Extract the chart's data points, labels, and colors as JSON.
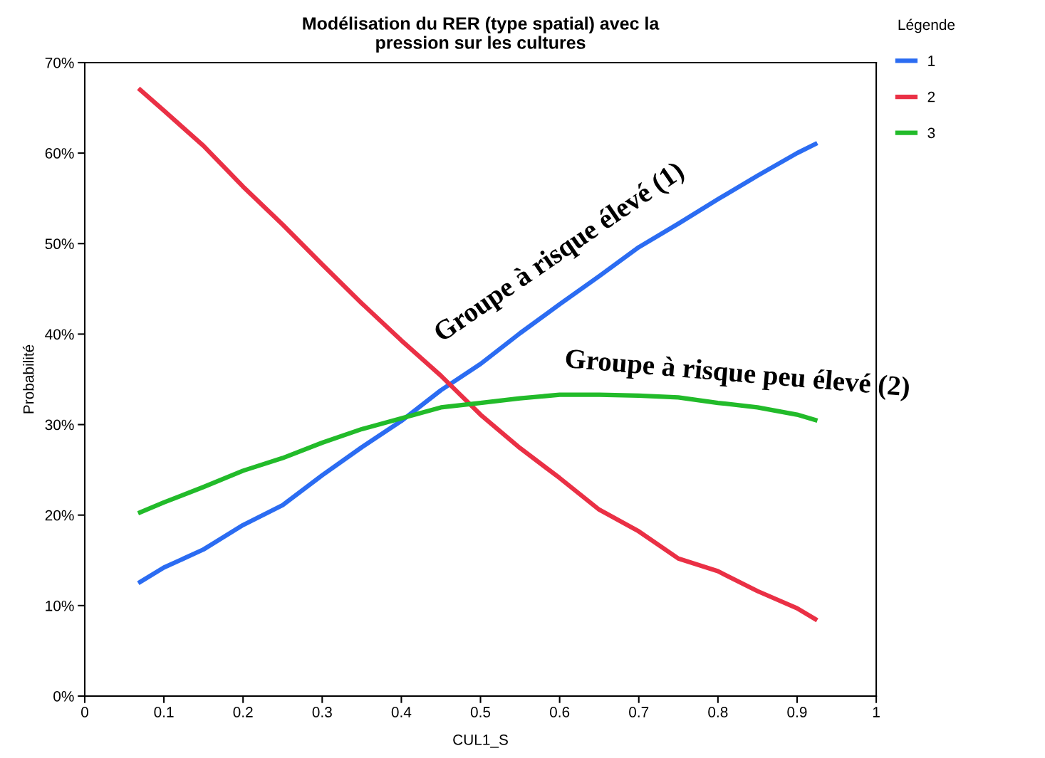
{
  "chart_data": {
    "type": "line",
    "title": "Modélisation du RER (type spatial) avec la\npression sur les cultures",
    "xlabel": "CUL1_S",
    "ylabel": "Probabilité",
    "legend_title": "Légende",
    "legend": "top right",
    "grid": false,
    "marker": "none",
    "line_style": "solid",
    "x": [
      0.07,
      0.1,
      0.15,
      0.2,
      0.25,
      0.3,
      0.35,
      0.4,
      0.45,
      0.5,
      0.55,
      0.6,
      0.65,
      0.7,
      0.75,
      0.8,
      0.85,
      0.9,
      0.923
    ],
    "series": [
      {
        "name": "1",
        "color": "#2b6cf2",
        "values": [
          12.6,
          14.2,
          16.2,
          18.9,
          21.1,
          24.4,
          27.5,
          30.4,
          33.8,
          36.7,
          40.1,
          43.3,
          46.4,
          49.6,
          52.2,
          54.9,
          57.5,
          60.0,
          61.0
        ]
      },
      {
        "name": "2",
        "color": "#ea3045",
        "values": [
          67.0,
          64.7,
          60.8,
          56.3,
          52.1,
          47.7,
          43.4,
          39.3,
          35.4,
          31.1,
          27.4,
          24.1,
          20.6,
          18.2,
          15.2,
          13.8,
          11.6,
          9.7,
          8.5
        ]
      },
      {
        "name": "3",
        "color": "#22bb2a",
        "values": [
          20.3,
          21.4,
          23.1,
          24.9,
          26.3,
          28.0,
          29.5,
          30.7,
          31.9,
          32.4,
          32.9,
          33.3,
          33.3,
          33.2,
          33.0,
          32.4,
          31.9,
          31.1,
          30.5
        ]
      }
    ],
    "xlim": [
      0,
      1
    ],
    "xticks": [
      0,
      0.1,
      0.2,
      0.3,
      0.4,
      0.5,
      0.6,
      0.7,
      0.8,
      0.9,
      1
    ],
    "ylim": [
      0,
      70
    ],
    "yticks": [
      {
        "value": 0,
        "label": "0%"
      },
      {
        "value": 10,
        "label": "10%"
      },
      {
        "value": 20,
        "label": "20%"
      },
      {
        "value": 30,
        "label": "30%"
      },
      {
        "value": 40,
        "label": "40%"
      },
      {
        "value": 50,
        "label": "50%"
      },
      {
        "value": 60,
        "label": "60%"
      },
      {
        "value": 70,
        "label": "70%"
      }
    ],
    "annotations": [
      "Groupe à risque élevé (1)",
      "Groupe à risque peu élevé (2)"
    ]
  }
}
